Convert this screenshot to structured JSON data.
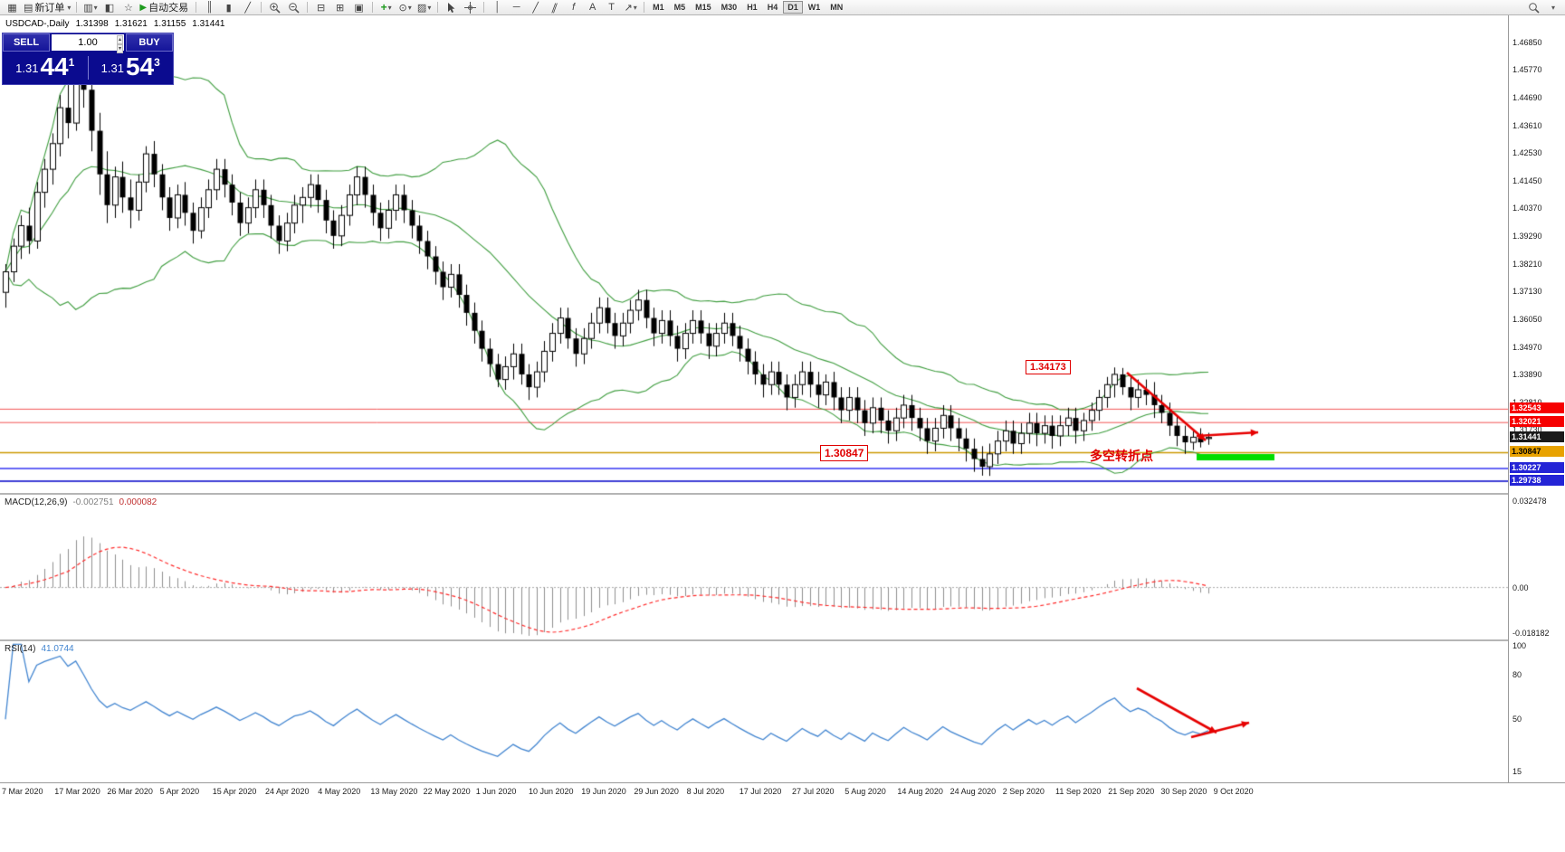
{
  "toolbar": {
    "new_order": "新订单",
    "autotrade": "自动交易",
    "timeframes": [
      "M1",
      "M5",
      "M15",
      "M30",
      "H1",
      "H4",
      "D1",
      "W1",
      "MN"
    ],
    "active_timeframe": "D1"
  },
  "chart_header": {
    "symbol": "USDCAD-,Daily",
    "open": "1.31398",
    "high": "1.31621",
    "low": "1.31155",
    "close": "1.31441"
  },
  "trade_panel": {
    "sell_label": "SELL",
    "buy_label": "BUY",
    "volume": "1.00",
    "bid_prefix": "1.31",
    "bid_main": "44",
    "bid_sup": "1",
    "ask_prefix": "1.31",
    "ask_main": "54",
    "ask_sup": "3"
  },
  "annotations": {
    "peak_label": "1.34173",
    "support_label": "1.30847",
    "turning_point_text": "多空转折点",
    "arrow_color": "#e60000",
    "zone_color": "#00dd00"
  },
  "price_axis": {
    "ticks": [
      "1.46850",
      "1.45770",
      "1.44690",
      "1.43610",
      "1.42530",
      "1.41450",
      "1.40370",
      "1.39290",
      "1.38210",
      "1.37130",
      "1.36050",
      "1.34970",
      "1.33890",
      "1.32810",
      "1.31730"
    ],
    "badges": [
      {
        "text": "1.32543",
        "bg": "#f60000",
        "fg": "#ffffff"
      },
      {
        "text": "1.32021",
        "bg": "#f60000",
        "fg": "#ffffff"
      },
      {
        "text": "1.31441",
        "bg": "#1a1a1a",
        "fg": "#ffffff"
      },
      {
        "text": "1.30847",
        "bg": "#e8a200",
        "fg": "#000000"
      },
      {
        "text": "1.30227",
        "bg": "#2424d6",
        "fg": "#ffffff"
      },
      {
        "text": "1.29738",
        "bg": "#2424d6",
        "fg": "#ffffff"
      }
    ]
  },
  "macd_panel": {
    "name": "MACD(12,26,9)",
    "main_value": "-0.002751",
    "signal_value": "0.000082",
    "scale_top": "0.032478",
    "scale_zero": "0.00",
    "scale_bottom": "-0.018182"
  },
  "rsi_panel": {
    "name": "RSI(14)",
    "value": "41.0744",
    "scale": [
      "100",
      "80",
      "50",
      "15"
    ]
  },
  "time_axis": [
    "7 Mar 2020",
    "17 Mar 2020",
    "26 Mar 2020",
    "5 Apr 2020",
    "15 Apr 2020",
    "24 Apr 2020",
    "4 May 2020",
    "13 May 2020",
    "22 May 2020",
    "1 Jun 2020",
    "10 Jun 2020",
    "19 Jun 2020",
    "29 Jun 2020",
    "8 Jul 2020",
    "17 Jul 2020",
    "27 Jul 2020",
    "5 Aug 2020",
    "14 Aug 2020",
    "24 Aug 2020",
    "2 Sep 2020",
    "11 Sep 2020",
    "21 Sep 2020",
    "30 Sep 2020",
    "9 Oct 2020"
  ],
  "chart_data": {
    "type": "candlestick",
    "symbol": "USDCAD",
    "period": "Daily",
    "ylim": [
      1.29277,
      1.479
    ],
    "hlines": [
      {
        "price": 1.32543,
        "color": "#f25555",
        "width": 1
      },
      {
        "price": 1.32021,
        "color": "#f25555",
        "width": 1
      },
      {
        "price": 1.30847,
        "color": "#cc9900",
        "width": 1.4
      },
      {
        "price": 1.30227,
        "color": "#3333f0",
        "width": 1.4
      },
      {
        "price": 1.29738,
        "color": "#0000c8",
        "width": 1.6
      }
    ],
    "bollinger": {
      "period": 20,
      "deviation": 2,
      "color": "#3f9d3f"
    },
    "macd": {
      "fast": 12,
      "slow": 26,
      "signal": 9,
      "ylim": [
        -0.018182,
        0.032478
      ]
    },
    "rsi": {
      "period": 14,
      "ylim": [
        8,
        102
      ]
    },
    "candles": [
      [
        1.371,
        1.382,
        1.365,
        1.379
      ],
      [
        1.379,
        1.392,
        1.375,
        1.389
      ],
      [
        1.389,
        1.401,
        1.384,
        1.397
      ],
      [
        1.397,
        1.404,
        1.386,
        1.391
      ],
      [
        1.391,
        1.414,
        1.388,
        1.41
      ],
      [
        1.41,
        1.423,
        1.404,
        1.419
      ],
      [
        1.419,
        1.433,
        1.413,
        1.429
      ],
      [
        1.429,
        1.448,
        1.424,
        1.443
      ],
      [
        1.443,
        1.452,
        1.431,
        1.437
      ],
      [
        1.437,
        1.4685,
        1.434,
        1.462
      ],
      [
        1.462,
        1.466,
        1.443,
        1.45
      ],
      [
        1.45,
        1.456,
        1.426,
        1.434
      ],
      [
        1.434,
        1.441,
        1.409,
        1.417
      ],
      [
        1.417,
        1.426,
        1.398,
        1.405
      ],
      [
        1.405,
        1.42,
        1.4,
        1.416
      ],
      [
        1.416,
        1.422,
        1.402,
        1.408
      ],
      [
        1.408,
        1.415,
        1.396,
        1.403
      ],
      [
        1.403,
        1.417,
        1.399,
        1.414
      ],
      [
        1.414,
        1.428,
        1.41,
        1.425
      ],
      [
        1.425,
        1.43,
        1.412,
        1.417
      ],
      [
        1.417,
        1.421,
        1.403,
        1.408
      ],
      [
        1.408,
        1.412,
        1.395,
        1.4
      ],
      [
        1.4,
        1.413,
        1.396,
        1.409
      ],
      [
        1.409,
        1.414,
        1.397,
        1.402
      ],
      [
        1.402,
        1.406,
        1.39,
        1.395
      ],
      [
        1.395,
        1.408,
        1.392,
        1.404
      ],
      [
        1.404,
        1.415,
        1.4,
        1.411
      ],
      [
        1.411,
        1.423,
        1.407,
        1.419
      ],
      [
        1.419,
        1.423,
        1.408,
        1.413
      ],
      [
        1.413,
        1.417,
        1.401,
        1.406
      ],
      [
        1.406,
        1.41,
        1.393,
        1.398
      ],
      [
        1.398,
        1.408,
        1.394,
        1.404
      ],
      [
        1.404,
        1.415,
        1.4,
        1.411
      ],
      [
        1.411,
        1.415,
        1.4,
        1.405
      ],
      [
        1.405,
        1.409,
        1.392,
        1.397
      ],
      [
        1.397,
        1.401,
        1.386,
        1.391
      ],
      [
        1.391,
        1.402,
        1.387,
        1.398
      ],
      [
        1.398,
        1.409,
        1.394,
        1.405
      ],
      [
        1.405,
        1.412,
        1.398,
        1.408
      ],
      [
        1.408,
        1.417,
        1.404,
        1.413
      ],
      [
        1.413,
        1.417,
        1.402,
        1.407
      ],
      [
        1.407,
        1.411,
        1.394,
        1.399
      ],
      [
        1.399,
        1.403,
        1.388,
        1.393
      ],
      [
        1.393,
        1.405,
        1.389,
        1.401
      ],
      [
        1.401,
        1.413,
        1.397,
        1.409
      ],
      [
        1.409,
        1.42,
        1.405,
        1.416
      ],
      [
        1.416,
        1.42,
        1.404,
        1.409
      ],
      [
        1.409,
        1.413,
        1.397,
        1.402
      ],
      [
        1.402,
        1.406,
        1.391,
        1.396
      ],
      [
        1.396,
        1.407,
        1.392,
        1.403
      ],
      [
        1.403,
        1.413,
        1.399,
        1.409
      ],
      [
        1.409,
        1.413,
        1.398,
        1.403
      ],
      [
        1.403,
        1.407,
        1.392,
        1.397
      ],
      [
        1.397,
        1.401,
        1.386,
        1.391
      ],
      [
        1.391,
        1.395,
        1.38,
        1.385
      ],
      [
        1.385,
        1.389,
        1.374,
        1.379
      ],
      [
        1.379,
        1.383,
        1.368,
        1.373
      ],
      [
        1.373,
        1.382,
        1.369,
        1.378
      ],
      [
        1.378,
        1.382,
        1.365,
        1.37
      ],
      [
        1.37,
        1.374,
        1.358,
        1.363
      ],
      [
        1.363,
        1.367,
        1.351,
        1.356
      ],
      [
        1.356,
        1.36,
        1.344,
        1.349
      ],
      [
        1.349,
        1.353,
        1.338,
        1.343
      ],
      [
        1.343,
        1.347,
        1.334,
        1.337
      ],
      [
        1.337,
        1.346,
        1.333,
        1.342
      ],
      [
        1.342,
        1.351,
        1.337,
        1.347
      ],
      [
        1.347,
        1.351,
        1.335,
        1.339
      ],
      [
        1.339,
        1.343,
        1.329,
        1.334
      ],
      [
        1.334,
        1.344,
        1.33,
        1.34
      ],
      [
        1.34,
        1.352,
        1.336,
        1.348
      ],
      [
        1.348,
        1.359,
        1.344,
        1.355
      ],
      [
        1.355,
        1.365,
        1.351,
        1.361
      ],
      [
        1.361,
        1.365,
        1.349,
        1.353
      ],
      [
        1.353,
        1.357,
        1.342,
        1.347
      ],
      [
        1.347,
        1.357,
        1.343,
        1.353
      ],
      [
        1.353,
        1.363,
        1.349,
        1.359
      ],
      [
        1.359,
        1.369,
        1.355,
        1.365
      ],
      [
        1.365,
        1.369,
        1.355,
        1.359
      ],
      [
        1.359,
        1.363,
        1.349,
        1.354
      ],
      [
        1.354,
        1.363,
        1.35,
        1.359
      ],
      [
        1.359,
        1.368,
        1.355,
        1.364
      ],
      [
        1.364,
        1.372,
        1.36,
        1.368
      ],
      [
        1.368,
        1.372,
        1.357,
        1.361
      ],
      [
        1.361,
        1.365,
        1.35,
        1.355
      ],
      [
        1.355,
        1.364,
        1.351,
        1.36
      ],
      [
        1.36,
        1.364,
        1.35,
        1.354
      ],
      [
        1.354,
        1.358,
        1.344,
        1.349
      ],
      [
        1.349,
        1.359,
        1.345,
        1.355
      ],
      [
        1.355,
        1.364,
        1.351,
        1.36
      ],
      [
        1.36,
        1.364,
        1.351,
        1.355
      ],
      [
        1.355,
        1.359,
        1.345,
        1.35
      ],
      [
        1.35,
        1.359,
        1.346,
        1.355
      ],
      [
        1.355,
        1.363,
        1.351,
        1.359
      ],
      [
        1.359,
        1.363,
        1.35,
        1.354
      ],
      [
        1.354,
        1.358,
        1.344,
        1.349
      ],
      [
        1.349,
        1.353,
        1.339,
        1.344
      ],
      [
        1.344,
        1.348,
        1.335,
        1.339
      ],
      [
        1.339,
        1.343,
        1.33,
        1.335
      ],
      [
        1.335,
        1.344,
        1.331,
        1.34
      ],
      [
        1.34,
        1.344,
        1.331,
        1.335
      ],
      [
        1.335,
        1.339,
        1.325,
        1.33
      ],
      [
        1.33,
        1.339,
        1.326,
        1.335
      ],
      [
        1.335,
        1.344,
        1.331,
        1.34
      ],
      [
        1.34,
        1.344,
        1.33,
        1.335
      ],
      [
        1.335,
        1.34,
        1.326,
        1.331
      ],
      [
        1.331,
        1.339,
        1.327,
        1.336
      ],
      [
        1.336,
        1.34,
        1.325,
        1.33
      ],
      [
        1.33,
        1.334,
        1.32,
        1.325
      ],
      [
        1.325,
        1.334,
        1.321,
        1.33
      ],
      [
        1.33,
        1.334,
        1.32,
        1.325
      ],
      [
        1.325,
        1.329,
        1.315,
        1.32
      ],
      [
        1.32,
        1.33,
        1.316,
        1.326
      ],
      [
        1.326,
        1.33,
        1.316,
        1.321
      ],
      [
        1.321,
        1.325,
        1.312,
        1.317
      ],
      [
        1.317,
        1.326,
        1.313,
        1.322
      ],
      [
        1.322,
        1.331,
        1.318,
        1.327
      ],
      [
        1.327,
        1.331,
        1.317,
        1.322
      ],
      [
        1.322,
        1.326,
        1.313,
        1.318
      ],
      [
        1.318,
        1.322,
        1.308,
        1.313
      ],
      [
        1.313,
        1.322,
        1.309,
        1.318
      ],
      [
        1.318,
        1.327,
        1.314,
        1.323
      ],
      [
        1.323,
        1.327,
        1.313,
        1.318
      ],
      [
        1.318,
        1.322,
        1.309,
        1.314
      ],
      [
        1.314,
        1.318,
        1.305,
        1.31
      ],
      [
        1.31,
        1.314,
        1.301,
        1.306
      ],
      [
        1.306,
        1.311,
        1.2995,
        1.303
      ],
      [
        1.303,
        1.312,
        1.2994,
        1.308
      ],
      [
        1.308,
        1.317,
        1.304,
        1.313
      ],
      [
        1.313,
        1.321,
        1.309,
        1.317
      ],
      [
        1.317,
        1.321,
        1.308,
        1.312
      ],
      [
        1.312,
        1.32,
        1.308,
        1.316
      ],
      [
        1.316,
        1.324,
        1.312,
        1.32
      ],
      [
        1.32,
        1.324,
        1.311,
        1.316
      ],
      [
        1.316,
        1.323,
        1.312,
        1.319
      ],
      [
        1.319,
        1.323,
        1.31,
        1.315
      ],
      [
        1.315,
        1.323,
        1.311,
        1.319
      ],
      [
        1.319,
        1.326,
        1.315,
        1.322
      ],
      [
        1.322,
        1.326,
        1.312,
        1.317
      ],
      [
        1.317,
        1.324,
        1.313,
        1.321
      ],
      [
        1.321,
        1.328,
        1.317,
        1.325
      ],
      [
        1.325,
        1.333,
        1.321,
        1.33
      ],
      [
        1.33,
        1.338,
        1.326,
        1.335
      ],
      [
        1.335,
        1.3417,
        1.33,
        1.339
      ],
      [
        1.339,
        1.3415,
        1.331,
        1.334
      ],
      [
        1.334,
        1.338,
        1.325,
        1.33
      ],
      [
        1.33,
        1.337,
        1.326,
        1.333
      ],
      [
        1.333,
        1.337,
        1.327,
        1.331
      ],
      [
        1.331,
        1.336,
        1.322,
        1.327
      ],
      [
        1.327,
        1.331,
        1.32,
        1.324
      ],
      [
        1.324,
        1.328,
        1.315,
        1.319
      ],
      [
        1.319,
        1.323,
        1.311,
        1.315
      ],
      [
        1.315,
        1.319,
        1.308,
        1.3125
      ],
      [
        1.3125,
        1.317,
        1.3095,
        1.3145
      ],
      [
        1.3145,
        1.318,
        1.3105,
        1.3125
      ],
      [
        1.31398,
        1.31621,
        1.31155,
        1.31441
      ]
    ]
  }
}
